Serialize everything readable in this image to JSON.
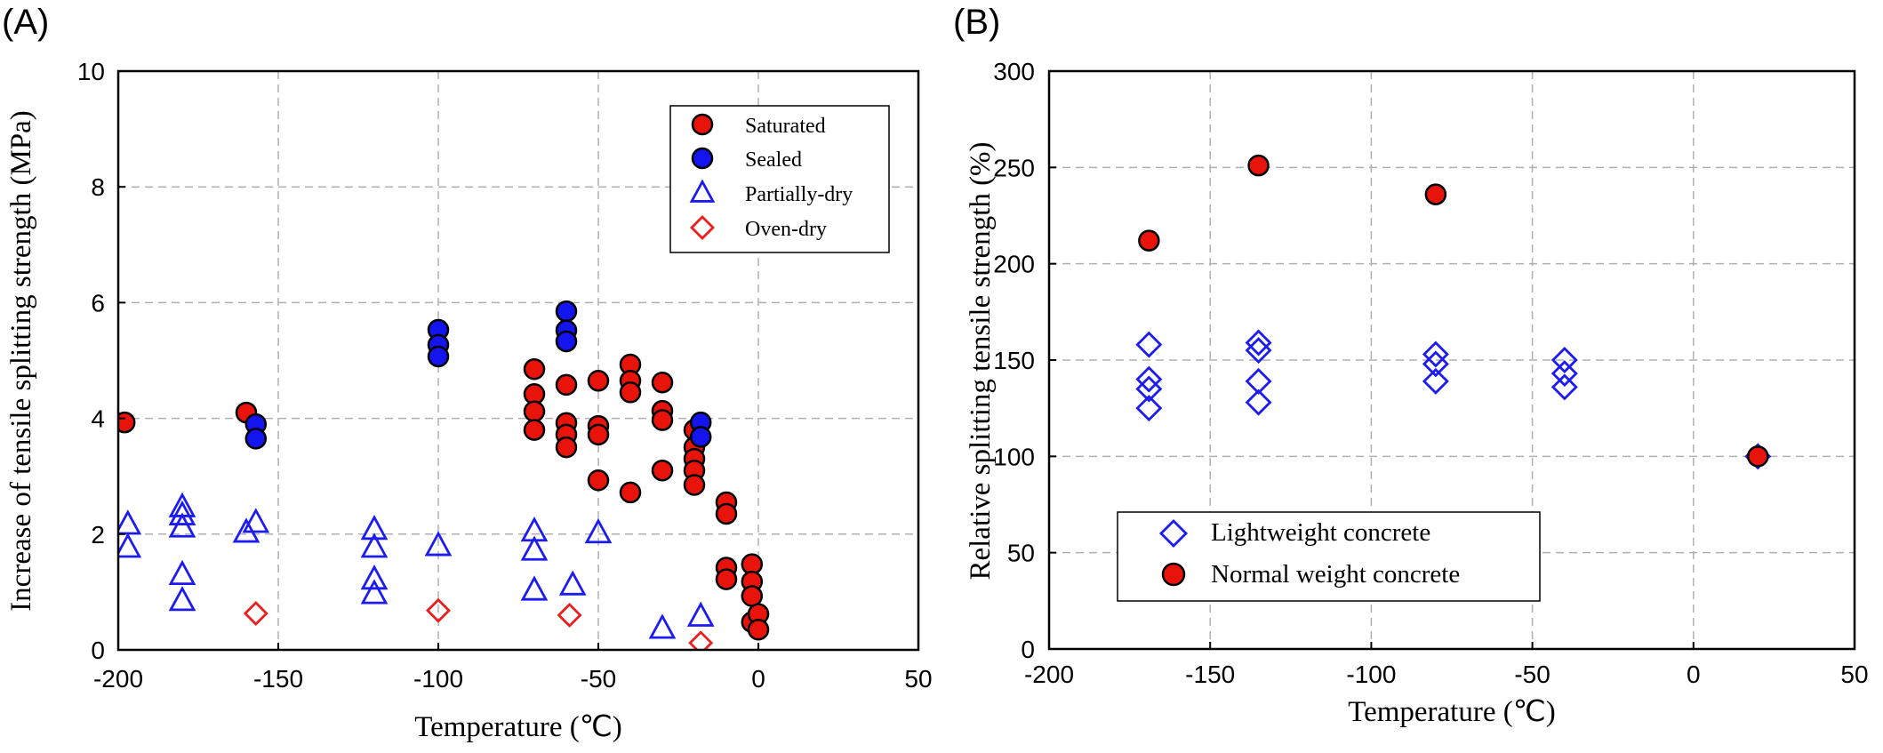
{
  "colors": {
    "saturated": "#e8140c",
    "sealed": "#1414ee",
    "partially_dry": "#1c1cf2",
    "oven_dry": "#ee1c1c",
    "lightweight": "#1c1cf2",
    "normal_weight": "#e8140c"
  },
  "chart_data": [
    {
      "panel": "(A)",
      "type": "scatter",
      "xlabel": "Temperature (℃)",
      "ylabel": "Increase of tensile splitting strength (MPa)",
      "xlim": [
        -200,
        50
      ],
      "ylim": [
        0,
        10
      ],
      "xticks": [
        -200,
        -150,
        -100,
        -50,
        0,
        50
      ],
      "yticks": [
        0,
        2,
        4,
        6,
        8,
        10
      ],
      "grid": true,
      "legend_position": "top-right",
      "series": [
        {
          "name": "Saturated",
          "marker": "circle",
          "color": "#e8140c",
          "points": [
            [
              -198,
              3.93
            ],
            [
              -160,
              4.1
            ],
            [
              -70,
              4.85
            ],
            [
              -70,
              4.42
            ],
            [
              -70,
              4.12
            ],
            [
              -70,
              3.8
            ],
            [
              -60,
              4.58
            ],
            [
              -60,
              3.92
            ],
            [
              -60,
              3.72
            ],
            [
              -60,
              3.5
            ],
            [
              -50,
              4.65
            ],
            [
              -50,
              3.87
            ],
            [
              -50,
              3.72
            ],
            [
              -50,
              2.93
            ],
            [
              -40,
              4.93
            ],
            [
              -40,
              4.65
            ],
            [
              -40,
              4.45
            ],
            [
              -40,
              2.72
            ],
            [
              -30,
              4.62
            ],
            [
              -30,
              4.13
            ],
            [
              -30,
              3.97
            ],
            [
              -30,
              3.1
            ],
            [
              -20,
              3.8
            ],
            [
              -20,
              3.5
            ],
            [
              -20,
              3.3
            ],
            [
              -20,
              3.1
            ],
            [
              -20,
              2.85
            ],
            [
              -10,
              2.55
            ],
            [
              -10,
              2.35
            ],
            [
              -10,
              1.42
            ],
            [
              -10,
              1.22
            ],
            [
              -2,
              1.48
            ],
            [
              -2,
              1.18
            ],
            [
              -2,
              0.93
            ],
            [
              -2,
              0.48
            ],
            [
              0,
              0.62
            ],
            [
              0,
              0.35
            ]
          ]
        },
        {
          "name": "Sealed",
          "marker": "circle",
          "color": "#1414ee",
          "points": [
            [
              -157,
              3.9
            ],
            [
              -157,
              3.65
            ],
            [
              -100,
              5.53
            ],
            [
              -100,
              5.27
            ],
            [
              -100,
              5.07
            ],
            [
              -60,
              5.85
            ],
            [
              -60,
              5.52
            ],
            [
              -60,
              5.33
            ],
            [
              -18,
              3.93
            ],
            [
              -18,
              3.68
            ]
          ]
        },
        {
          "name": "Partially-dry",
          "marker": "triangle",
          "color": "#1c1cf2",
          "points": [
            [
              -197,
              2.17
            ],
            [
              -197,
              1.77
            ],
            [
              -180,
              2.47
            ],
            [
              -180,
              2.33
            ],
            [
              -180,
              2.12
            ],
            [
              -180,
              1.3
            ],
            [
              -180,
              0.85
            ],
            [
              -160,
              2.03
            ],
            [
              -157,
              2.2
            ],
            [
              -120,
              2.08
            ],
            [
              -120,
              1.77
            ],
            [
              -120,
              1.22
            ],
            [
              -120,
              0.97
            ],
            [
              -100,
              1.8
            ],
            [
              -70,
              2.05
            ],
            [
              -70,
              1.72
            ],
            [
              -70,
              1.03
            ],
            [
              -58,
              1.12
            ],
            [
              -50,
              2.02
            ],
            [
              -30,
              0.37
            ],
            [
              -18,
              0.58
            ]
          ]
        },
        {
          "name": "Oven-dry",
          "marker": "diamond",
          "color": "#ee1c1c",
          "points": [
            [
              -157,
              0.63
            ],
            [
              -100,
              0.68
            ],
            [
              -59,
              0.6
            ],
            [
              -18,
              0.12
            ]
          ]
        }
      ]
    },
    {
      "panel": "(B)",
      "type": "scatter",
      "xlabel": "Temperature (℃)",
      "ylabel": "Relative splitting tensile strength (%)",
      "xlim": [
        -200,
        50
      ],
      "ylim": [
        0,
        300
      ],
      "xticks": [
        -200,
        -150,
        -100,
        -50,
        0,
        50
      ],
      "yticks": [
        0,
        50,
        100,
        150,
        200,
        250,
        300
      ],
      "grid": true,
      "legend_position": "bottom-left",
      "series": [
        {
          "name": "Lightweight concrete",
          "marker": "diamond",
          "color": "#1c1cf2",
          "points": [
            [
              -169,
              158
            ],
            [
              -169,
              140
            ],
            [
              -169,
              135
            ],
            [
              -169,
              125
            ],
            [
              -135,
              159
            ],
            [
              -135,
              155
            ],
            [
              -135,
              139
            ],
            [
              -135,
              128
            ],
            [
              -80,
              153
            ],
            [
              -80,
              148
            ],
            [
              -80,
              139
            ],
            [
              -40,
              150
            ],
            [
              -40,
              143
            ],
            [
              -40,
              136
            ],
            [
              20,
              100
            ]
          ]
        },
        {
          "name": "Normal weight concrete",
          "marker": "circle",
          "color": "#e8140c",
          "points": [
            [
              -169,
              212
            ],
            [
              -135,
              251
            ],
            [
              -80,
              236
            ],
            [
              20,
              100
            ]
          ]
        }
      ]
    }
  ]
}
